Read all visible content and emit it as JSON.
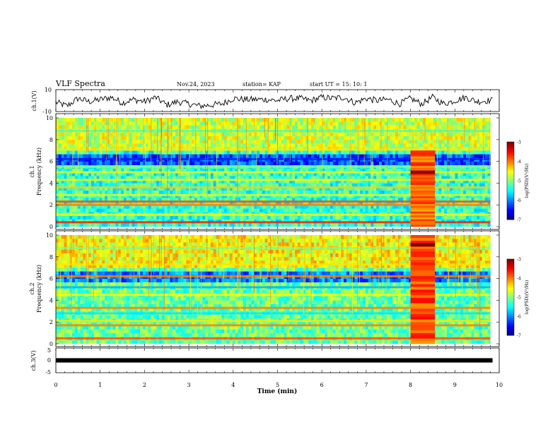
{
  "header": {
    "title": "VLF Spectra",
    "date": "Nov.24, 2023",
    "station": "station= KAP",
    "start": "start  UT =   15: 10: 1"
  },
  "chart_data": [
    {
      "type": "line",
      "name": "waveform-ch1",
      "ylabel": "ch.1(V)",
      "ylim": [
        -10,
        10
      ],
      "ytick_labels": [
        "10",
        "-10"
      ],
      "xlim": [
        0,
        10
      ],
      "x": [
        0.0,
        0.25,
        0.5,
        0.75,
        1.0,
        1.25,
        1.5,
        1.75,
        2.0,
        2.25,
        2.5,
        2.75,
        3.0,
        3.25,
        3.5,
        3.75,
        4.0,
        4.25,
        4.5,
        4.75,
        5.0,
        5.25,
        5.5,
        5.75,
        6.0,
        6.25,
        6.5,
        6.75,
        7.0,
        7.25,
        7.5,
        7.75,
        8.0,
        8.25,
        8.5,
        8.75,
        9.0,
        9.25,
        9.5,
        9.75
      ],
      "values": [
        -1.5,
        -5,
        2,
        -1,
        1,
        3,
        -2,
        1,
        -1,
        3,
        -4,
        -1,
        -3,
        -5,
        -4,
        -3,
        2,
        1,
        1,
        1,
        0,
        2,
        2,
        0,
        3,
        2,
        3,
        -2,
        2,
        0,
        1,
        -3,
        2,
        -3,
        3,
        -3,
        0,
        3,
        -1,
        0
      ],
      "noise_amplitude": 3
    },
    {
      "type": "heatmap",
      "name": "spectrogram-ch1",
      "ylabel": "ch.1\nFrequency (kHz)",
      "ylabel_lines": [
        "ch.1",
        "Frequency (kHz)"
      ],
      "ylim": [
        0,
        10
      ],
      "ytick_labels": [
        "0",
        "2",
        "4",
        "6",
        "8",
        "10"
      ],
      "xlim": [
        0,
        10
      ],
      "colorbar": {
        "label": "log(PSD)(V²/Hz)",
        "range": [
          -7,
          -3
        ],
        "tick_labels": [
          "-3",
          "-4",
          "-5",
          "-6",
          "-7"
        ]
      },
      "background_level": -5.3,
      "bands": [
        {
          "f": 0.4,
          "level": -3.6
        },
        {
          "f": 1.1,
          "level": -4.5
        },
        {
          "f": 2.0,
          "level": -4.0
        },
        {
          "f": 2.3,
          "level": -3.8
        },
        {
          "f": 2.9,
          "level": -4.6
        },
        {
          "f": 3.6,
          "level": -4.3
        },
        {
          "f": 4.3,
          "level": -4.5
        },
        {
          "f": 5.0,
          "level": -4.6
        },
        {
          "f": 5.5,
          "level": -5.0
        },
        {
          "f": 6.2,
          "level": -6.4
        },
        {
          "f": 7.1,
          "level": -4.4
        },
        {
          "f": 8.8,
          "level": -5.2
        }
      ],
      "burst": {
        "t_start": 8.0,
        "t_end": 8.55,
        "f_max": 7.0,
        "level": -3.9,
        "peak_f": 5.0,
        "peak_level": -3.1
      }
    },
    {
      "type": "heatmap",
      "name": "spectrogram-ch2",
      "ylabel": "ch.2\nFrequency (kHz)",
      "ylabel_lines": [
        "ch.2",
        "Frequency (kHz)"
      ],
      "ylim": [
        0,
        10
      ],
      "ytick_labels": [
        "0",
        "2",
        "4",
        "6",
        "8",
        "10"
      ],
      "xlim": [
        0,
        10
      ],
      "colorbar": {
        "label": "log(PSD)(V²/Hz)",
        "range": [
          -7,
          -3
        ],
        "tick_labels": [
          "-3",
          "-4",
          "-5",
          "-6",
          "-7"
        ]
      },
      "background_level": -5.1,
      "bands": [
        {
          "f": 0.5,
          "level": -3.8
        },
        {
          "f": 1.7,
          "level": -4.0
        },
        {
          "f": 2.1,
          "level": -4.4
        },
        {
          "f": 2.8,
          "level": -5.6
        },
        {
          "f": 3.3,
          "level": -4.0
        },
        {
          "f": 4.5,
          "level": -4.5
        },
        {
          "f": 5.2,
          "level": -5.8
        },
        {
          "f": 6.2,
          "level": -4.0
        },
        {
          "f": 7.3,
          "level": -4.4
        },
        {
          "f": 8.8,
          "level": -5.0
        }
      ],
      "burst": {
        "t_start": 8.0,
        "t_end": 8.55,
        "f_max": 10.0,
        "level": -3.8,
        "peak_f": 9.1,
        "peak_level": -3.0
      }
    },
    {
      "type": "line",
      "name": "waveform-ch3",
      "ylabel": "ch.3(V)",
      "ylim": [
        -5,
        5
      ],
      "ytick_labels": [
        "5",
        "0",
        "-5"
      ],
      "xlim": [
        0,
        10
      ],
      "x": [
        0,
        9.85
      ],
      "values": [
        0,
        0
      ],
      "band_halfwidth": 0.45,
      "xlabel": "Time  (min)",
      "xtick_labels": [
        "0",
        "1",
        "2",
        "3",
        "4",
        "5",
        "6",
        "7",
        "8",
        "9",
        "10"
      ]
    }
  ],
  "colors": {
    "axis": "#000000",
    "background": "#ffffff"
  }
}
